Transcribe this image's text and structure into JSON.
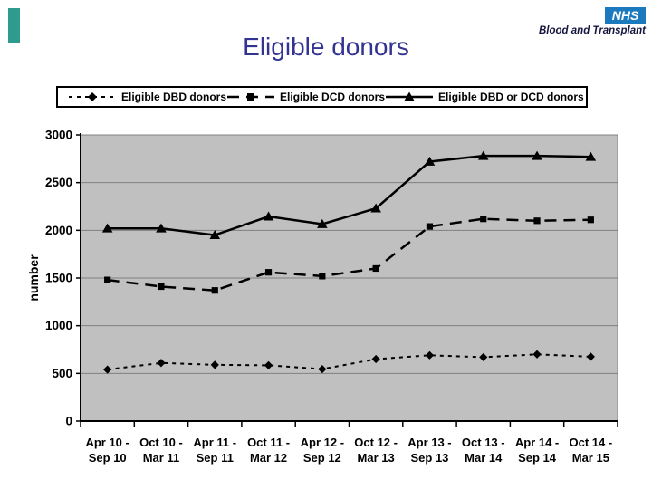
{
  "page": {
    "accent_bar_color": "#2E9B8F",
    "background": "#ffffff"
  },
  "branding": {
    "nhs_logo_text": "NHS",
    "nhs_logo_bg": "#1B79BE",
    "org_name": "Blood and Transplant"
  },
  "title": "Eligible donors",
  "title_color": "#333391",
  "chart_data": {
    "type": "line",
    "title": "Eligible donors",
    "xlabel": "",
    "ylabel": "number",
    "ylim": [
      0,
      3000
    ],
    "yticks": [
      0,
      500,
      1000,
      1500,
      2000,
      2500,
      3000
    ],
    "grid": "horizontal",
    "legend_position": "top",
    "plot_bg": "#c0c0c0",
    "gridline_color": "#808080",
    "axis_color": "#000000",
    "categories": [
      [
        "Apr 10 -",
        "Sep 10"
      ],
      [
        "Oct 10 -",
        "Mar 11"
      ],
      [
        "Apr 11 -",
        "Sep 11"
      ],
      [
        "Oct 11 -",
        "Mar 12"
      ],
      [
        "Apr 12 -",
        "Sep 12"
      ],
      [
        "Oct 12 -",
        "Mar 13"
      ],
      [
        "Apr 13 -",
        "Sep 13"
      ],
      [
        "Oct 13 -",
        "Mar 14"
      ],
      [
        "Apr 14 -",
        "Sep 14"
      ],
      [
        "Oct 14 -",
        "Mar 15"
      ]
    ],
    "series": [
      {
        "name": "Eligible DBD donors",
        "marker": "diamond",
        "line_style": "short-dash",
        "color": "#000000",
        "values": [
          540,
          610,
          590,
          585,
          545,
          650,
          690,
          670,
          700,
          675
        ]
      },
      {
        "name": "Eligible DCD donors",
        "marker": "square",
        "line_style": "long-dash",
        "color": "#000000",
        "values": [
          1480,
          1410,
          1370,
          1560,
          1520,
          1600,
          2040,
          2120,
          2100,
          2110
        ]
      },
      {
        "name": "Eligible DBD or DCD donors",
        "marker": "triangle",
        "line_style": "solid",
        "color": "#000000",
        "values": [
          2020,
          2020,
          1950,
          2145,
          2065,
          2230,
          2720,
          2780,
          2780,
          2770
        ]
      }
    ]
  }
}
